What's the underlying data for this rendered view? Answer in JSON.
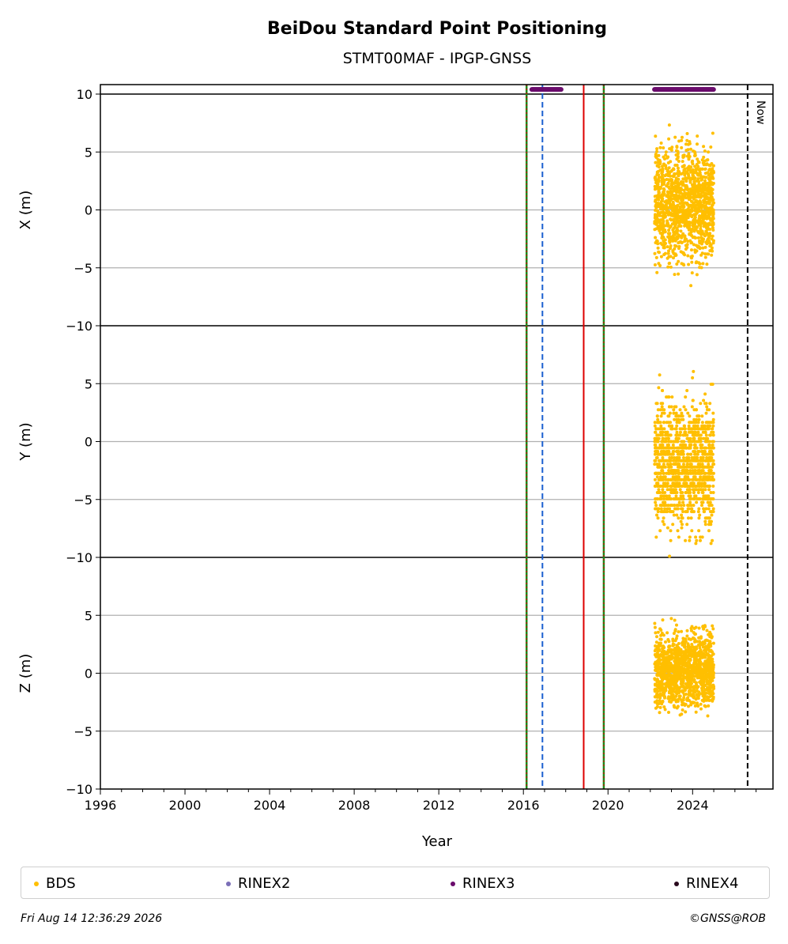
{
  "chart_data": {
    "type": "scatter",
    "title": "BeiDou Standard Point Positioning",
    "subtitle": "STMT00MAF - IPGP-GNSS",
    "xlabel": "Year",
    "xlim": [
      1996,
      2027.8
    ],
    "xticks": [
      1996,
      2000,
      2004,
      2008,
      2012,
      2016,
      2020,
      2024
    ],
    "grid": true,
    "panels": [
      {
        "ylabel": "X (m)",
        "ylim": [
          -10,
          10
        ],
        "yticks": [
          "10",
          "5",
          "0",
          "−5",
          "−10"
        ]
      },
      {
        "ylabel": "Y (m)",
        "ylim": [
          -10,
          10
        ],
        "yticks": [
          "5",
          "0",
          "−5",
          "−10"
        ]
      },
      {
        "ylabel": "Z (m)",
        "ylim": [
          -10,
          10
        ],
        "yticks": [
          "5",
          "0",
          "−5",
          "−10"
        ]
      }
    ],
    "series": [
      {
        "name": "BDS",
        "color": "#ffbf00",
        "x_range": [
          2022.2,
          2025.0
        ],
        "spread_m": {
          "X": 4.0,
          "Y": 4.5,
          "Z": 2.8
        },
        "center_m": {
          "X": 0.5,
          "Y": -2.0,
          "Z": 0.3
        }
      },
      {
        "name": "RINEX2",
        "color": "#7b6fb7"
      },
      {
        "name": "RINEX3",
        "color": "#6a0c6c",
        "segments": [
          [
            2016.4,
            2017.8
          ],
          [
            2022.2,
            2025.0
          ]
        ],
        "level_m": 10.4
      },
      {
        "name": "RINEX4",
        "color": "#2a0a1e"
      }
    ],
    "vlines": [
      {
        "x": 2016.15,
        "color": "#1a8a1a",
        "style": "solid-dotted-red"
      },
      {
        "x": 2016.9,
        "color": "#1a5fd0",
        "style": "dashed"
      },
      {
        "x": 2018.85,
        "color": "#dd0000",
        "style": "solid"
      },
      {
        "x": 2019.8,
        "color": "#1a8a1a",
        "style": "solid-dotted-red"
      },
      {
        "x": 2026.6,
        "color": "#000000",
        "style": "dashed",
        "label": "Now"
      }
    ],
    "legend_position": "bottom"
  },
  "legend": [
    {
      "label": "BDS",
      "color": "#ffbf00"
    },
    {
      "label": "RINEX2",
      "color": "#7b6fb7"
    },
    {
      "label": "RINEX3",
      "color": "#6a0c6c"
    },
    {
      "label": "RINEX4",
      "color": "#2a0a1e"
    }
  ],
  "footer": {
    "left": "Fri Aug 14 12:36:29 2026",
    "right": "©GNSS@ROB"
  }
}
